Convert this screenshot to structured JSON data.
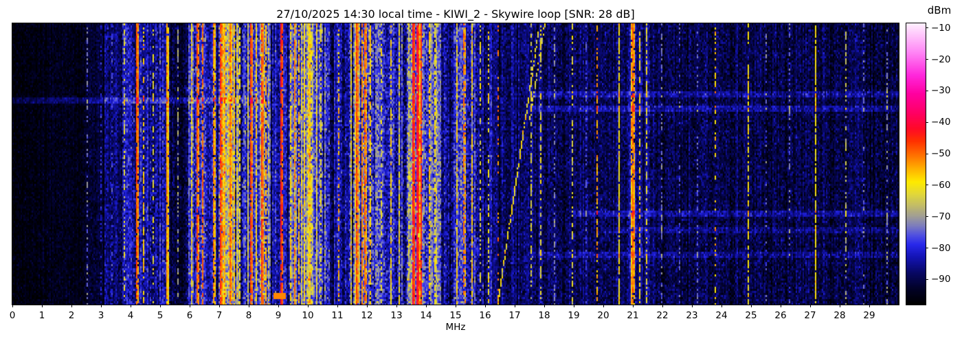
{
  "figure": {
    "title": "27/10/2025 14:30 local time - KIWI_2 - Skywire loop [SNR: 28 dB]",
    "xlabel": "MHz",
    "colorbar_label": "dBm"
  },
  "chart_data": {
    "type": "heatmap",
    "title": "27/10/2025 14:30 local time - KIWI_2 - Skywire loop [SNR: 28 dB]",
    "xlabel": "MHz",
    "x_range": [
      0,
      30
    ],
    "x_ticks": [
      0,
      1,
      2,
      3,
      4,
      5,
      6,
      7,
      8,
      9,
      10,
      11,
      12,
      13,
      14,
      15,
      16,
      17,
      18,
      19,
      20,
      21,
      22,
      23,
      24,
      25,
      26,
      27,
      28,
      29
    ],
    "colorbar": {
      "label": "dBm",
      "ticks": [
        -10,
        -20,
        -30,
        -40,
        -50,
        -60,
        -70,
        -80,
        -90
      ],
      "value_range_dbm": [
        -98,
        -8.5
      ]
    },
    "colormap_stops": [
      [
        -98,
        0,
        0,
        0
      ],
      [
        -93,
        2,
        2,
        40
      ],
      [
        -88,
        8,
        8,
        100
      ],
      [
        -83,
        20,
        20,
        180
      ],
      [
        -79,
        40,
        40,
        235
      ],
      [
        -76,
        80,
        80,
        225
      ],
      [
        -73,
        125,
        125,
        190
      ],
      [
        -70,
        160,
        158,
        150
      ],
      [
        -67,
        190,
        185,
        110
      ],
      [
        -63,
        225,
        215,
        60
      ],
      [
        -59,
        255,
        235,
        0
      ],
      [
        -55,
        255,
        180,
        0
      ],
      [
        -51,
        255,
        120,
        0
      ],
      [
        -46,
        255,
        50,
        0
      ],
      [
        -42,
        255,
        10,
        40
      ],
      [
        -37,
        255,
        0,
        100
      ],
      [
        -31,
        255,
        0,
        160
      ],
      [
        -25,
        255,
        40,
        220
      ],
      [
        -18,
        255,
        130,
        245
      ],
      [
        -12,
        255,
        200,
        252
      ],
      [
        -8.5,
        255,
        240,
        255
      ]
    ],
    "noise_bands_fields": [
      "mhz_from",
      "mhz_to",
      "base_dbm",
      "column_var_db",
      "cell_var_db"
    ],
    "noise_bands": [
      [
        0,
        1,
        -96,
        1,
        2.5
      ],
      [
        1,
        2.5,
        -95,
        1.5,
        2.5
      ],
      [
        2.5,
        3.1,
        -92.5,
        2,
        3
      ],
      [
        3.1,
        3.7,
        -87,
        3,
        4
      ],
      [
        3.7,
        4.4,
        -84,
        4,
        5
      ],
      [
        4.4,
        5.0,
        -86,
        4,
        5
      ],
      [
        5.0,
        5.35,
        -84,
        5,
        5
      ],
      [
        5.35,
        5.9,
        -92,
        3,
        4
      ],
      [
        5.9,
        6.6,
        -80,
        7,
        6
      ],
      [
        6.6,
        7.0,
        -85,
        5,
        5
      ],
      [
        7.0,
        7.65,
        -72,
        8,
        7
      ],
      [
        7.65,
        8.25,
        -80,
        7,
        6
      ],
      [
        8.25,
        8.7,
        -76,
        8,
        7
      ],
      [
        8.7,
        9.35,
        -83,
        6,
        5
      ],
      [
        9.35,
        10.15,
        -72,
        7,
        6
      ],
      [
        10.15,
        10.75,
        -76,
        7,
        6
      ],
      [
        10.75,
        11.4,
        -86,
        4,
        5
      ],
      [
        11.4,
        12.25,
        -75,
        8,
        7
      ],
      [
        12.25,
        13.35,
        -81,
        7,
        6
      ],
      [
        13.35,
        14.05,
        -73,
        9,
        7
      ],
      [
        14.05,
        14.5,
        -78,
        7,
        6
      ],
      [
        14.5,
        15.0,
        -85,
        5,
        5
      ],
      [
        15.0,
        15.75,
        -79,
        7,
        6
      ],
      [
        15.75,
        16.25,
        -85,
        5,
        5
      ],
      [
        16.25,
        18.1,
        -89,
        3,
        4
      ],
      [
        18.1,
        20.4,
        -90,
        2.5,
        4
      ],
      [
        20.4,
        21.7,
        -88,
        3,
        4
      ],
      [
        21.7,
        24.6,
        -91,
        2.5,
        4
      ],
      [
        24.6,
        26.5,
        -90.5,
        2.5,
        4
      ],
      [
        26.5,
        28.5,
        -90,
        2.5,
        4
      ],
      [
        28.5,
        30,
        -91,
        2.5,
        4
      ]
    ],
    "carriers_fields": [
      "mhz",
      "level_dbm",
      "width_px",
      "duty"
    ],
    "carriers": [
      [
        2.55,
        -74,
        1,
        0.5
      ],
      [
        3.0,
        -80,
        1,
        0.4
      ],
      [
        3.35,
        -78,
        1,
        0.45
      ],
      [
        3.8,
        -63,
        1,
        0.45
      ],
      [
        4.2,
        -48,
        2,
        0.9
      ],
      [
        4.45,
        -57,
        1,
        0.6
      ],
      [
        4.75,
        -62,
        1,
        0.5
      ],
      [
        5.25,
        -53,
        2,
        0.95
      ],
      [
        5.6,
        -70,
        1,
        0.4
      ],
      [
        6.05,
        -58,
        1,
        0.7
      ],
      [
        6.25,
        -48,
        2,
        0.85
      ],
      [
        6.42,
        -50,
        1,
        0.8
      ],
      [
        6.8,
        -52,
        2,
        0.8
      ],
      [
        7.05,
        -46,
        2,
        0.9
      ],
      [
        7.2,
        -55,
        1,
        0.8
      ],
      [
        7.35,
        -50,
        2,
        0.9
      ],
      [
        7.5,
        -57,
        1,
        0.8
      ],
      [
        7.7,
        -60,
        1,
        0.7
      ],
      [
        8.07,
        -47,
        2,
        0.9
      ],
      [
        8.25,
        -58,
        1,
        0.7
      ],
      [
        8.42,
        -46,
        2,
        0.9
      ],
      [
        8.6,
        -55,
        1,
        0.7
      ],
      [
        9.08,
        -44,
        2,
        0.85
      ],
      [
        9.4,
        -58,
        1,
        0.7
      ],
      [
        9.55,
        -52,
        1,
        0.8
      ],
      [
        9.7,
        -56,
        1,
        0.7
      ],
      [
        9.9,
        -58,
        1,
        0.7
      ],
      [
        10.1,
        -60,
        1,
        0.6
      ],
      [
        10.45,
        -62,
        1,
        0.6
      ],
      [
        11.05,
        -55,
        1,
        0.5
      ],
      [
        11.63,
        -47,
        2,
        0.9
      ],
      [
        11.82,
        -52,
        1,
        0.85
      ],
      [
        11.95,
        -49,
        2,
        0.85
      ],
      [
        12.12,
        -57,
        1,
        0.7
      ],
      [
        12.5,
        -62,
        1,
        0.5
      ],
      [
        12.8,
        -58,
        1,
        0.6
      ],
      [
        13.1,
        -60,
        1,
        0.6
      ],
      [
        13.58,
        -42,
        2,
        0.95
      ],
      [
        13.72,
        -40,
        2,
        0.95
      ],
      [
        13.85,
        -45,
        1,
        0.9
      ],
      [
        14.1,
        -56,
        1,
        0.7
      ],
      [
        14.3,
        -60,
        1,
        0.6
      ],
      [
        15.05,
        -58,
        1,
        0.6
      ],
      [
        15.3,
        -50,
        2,
        0.6
      ],
      [
        15.55,
        -57,
        1,
        0.7
      ],
      [
        15.85,
        -62,
        1,
        0.5
      ],
      [
        16.1,
        -60,
        1,
        0.5
      ],
      [
        16.45,
        -52,
        1,
        0.3
      ],
      [
        17.55,
        -64,
        1,
        0.5
      ],
      [
        17.9,
        -62,
        1,
        0.55
      ],
      [
        18.35,
        -72,
        1,
        0.5
      ],
      [
        18.95,
        -63,
        1,
        0.5
      ],
      [
        19.4,
        -76,
        1,
        0.4
      ],
      [
        19.8,
        -54,
        1,
        0.6
      ],
      [
        20.55,
        -60,
        1,
        0.85
      ],
      [
        21.0,
        -50,
        3,
        0.9
      ],
      [
        21.25,
        -60,
        1,
        0.6
      ],
      [
        21.45,
        -62,
        1,
        0.5
      ],
      [
        22.0,
        -74,
        1,
        0.4
      ],
      [
        22.6,
        -76,
        1,
        0.3
      ],
      [
        23.2,
        -75,
        1,
        0.35
      ],
      [
        23.8,
        -58,
        1,
        0.35
      ],
      [
        24.9,
        -60,
        1,
        0.6
      ],
      [
        25.5,
        -75,
        1,
        0.3
      ],
      [
        26.3,
        -74,
        1,
        0.35
      ],
      [
        27.2,
        -60,
        1,
        0.85
      ],
      [
        28.2,
        -66,
        1,
        0.5
      ],
      [
        28.8,
        -74,
        1,
        0.3
      ],
      [
        29.6,
        -72,
        1,
        0.4
      ]
    ],
    "chirps_fields": [
      "mhz_at_bottom",
      "mhz_at_top",
      "frac_top",
      "frac_bottom",
      "level_dbm",
      "duty"
    ],
    "chirps": [
      [
        16.42,
        17.85,
        0,
        1,
        -60,
        0.85
      ],
      [
        17.5,
        18.02,
        0,
        0.35,
        -63,
        0.7
      ]
    ],
    "streaks_fields": [
      "row_frac",
      "mhz_from",
      "mhz_to",
      "boost_db"
    ],
    "streaks": [
      [
        0.277,
        0,
        8.6,
        7
      ],
      [
        0.25,
        17.5,
        30,
        6
      ],
      [
        0.3,
        17.5,
        30,
        6
      ],
      [
        0.675,
        19,
        30,
        6
      ],
      [
        0.735,
        20,
        30,
        4
      ],
      [
        0.82,
        17.5,
        30,
        5
      ]
    ],
    "patches_fields": [
      "mhz_from",
      "mhz_to",
      "frac_from",
      "frac_to",
      "level_dbm"
    ],
    "patches": [
      [
        8.85,
        9.25,
        0.955,
        0.975,
        -52
      ]
    ]
  }
}
